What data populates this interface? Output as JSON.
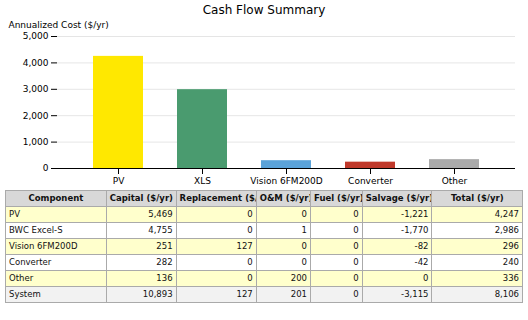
{
  "chart_data": {
    "type": "bar",
    "title": "Cash Flow Summary",
    "categories": [
      "PV",
      "XLS",
      "Vision 6FM200D",
      "Converter",
      "Other"
    ],
    "values": [
      4247,
      2986,
      296,
      240,
      336
    ],
    "colors": [
      "#FFE800",
      "#4A9B6F",
      "#5BA3D9",
      "#C0392B",
      "#AAAAAA"
    ],
    "ylabel": "Annualized Cost ($/yr)",
    "ylim": [
      0,
      5000
    ],
    "yticks": [
      0,
      {
        "value": 1000,
        "label": "1,000"
      },
      {
        "value": 2000,
        "label": "2,000"
      },
      {
        "value": 3000,
        "label": "3,000"
      },
      {
        "value": 4000,
        "label": "4,000"
      },
      {
        "value": 5000,
        "label": "5,000"
      }
    ],
    "grid": true,
    "table": {
      "headers": [
        "Component",
        "Capital ($/yr)",
        "Replacement ($/yr)",
        "O&M ($/yr)",
        "Fuel ($/yr)",
        "Salvage ($/yr)",
        "Total ($/yr)"
      ],
      "rows": [
        [
          "PV",
          "5,469",
          "0",
          "0",
          "0",
          "-1,221",
          "4,247"
        ],
        [
          "BWC Excel-S",
          "4,755",
          "0",
          "1",
          "0",
          "-1,770",
          "2,986"
        ],
        [
          "Vision 6FM200D",
          "251",
          "127",
          "0",
          "0",
          "-82",
          "296"
        ],
        [
          "Converter",
          "282",
          "0",
          "0",
          "0",
          "-42",
          "240"
        ],
        [
          "Other",
          "136",
          "0",
          "200",
          "0",
          "0",
          "336"
        ],
        [
          "System",
          "10,893",
          "127",
          "201",
          "0",
          "-3,115",
          "8,106"
        ]
      ],
      "header_color": "#D8D8D8",
      "row_colors": [
        "#FFFFCC",
        "#FFFFFF",
        "#FFFFCC",
        "#FFFFFF",
        "#FFFFCC",
        "#F2F2F2"
      ]
    }
  }
}
